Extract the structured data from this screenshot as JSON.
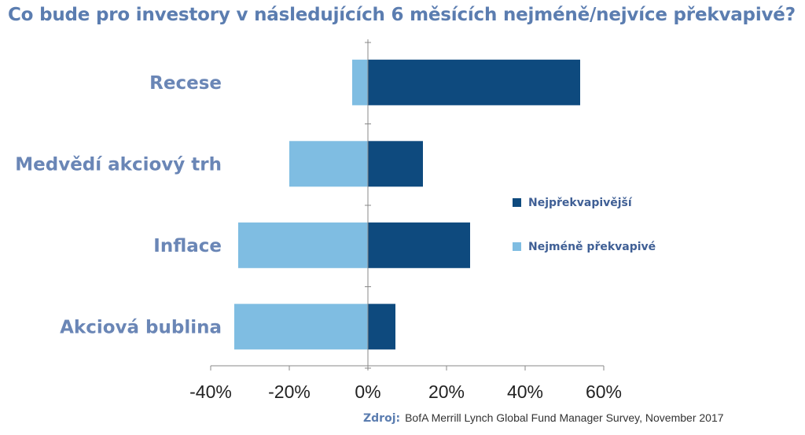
{
  "title": "Co bude pro investory v následujících 6 měsících nejméně/nejvíce překvapivé?",
  "source": {
    "label": "Zdroj:",
    "text": "BofA Merrill Lynch Global Fund Manager Survey, November 2017"
  },
  "colors": {
    "most": "#0e4a7e",
    "least": "#7fbde2",
    "category_text": "#6a86b6",
    "legend_text": "#3f5f95"
  },
  "chart_data": {
    "type": "bar",
    "orientation": "horizontal",
    "categories": [
      "Recese",
      "Medvědí akciový trh",
      "Inflace",
      "Akciová bublina"
    ],
    "series": [
      {
        "name": "Nejpřekvapivější",
        "values": [
          54,
          14,
          26,
          7
        ]
      },
      {
        "name": "Nejméně překvapivé",
        "values": [
          -4,
          -20,
          -33,
          -34
        ]
      }
    ],
    "xlim": [
      -40,
      60
    ],
    "xticks": [
      -40,
      -20,
      0,
      20,
      40,
      60
    ],
    "xtick_labels": [
      "-40%",
      "-20%",
      "0%",
      "20%",
      "40%",
      "60%"
    ],
    "legend_position": "right",
    "grid": false
  }
}
